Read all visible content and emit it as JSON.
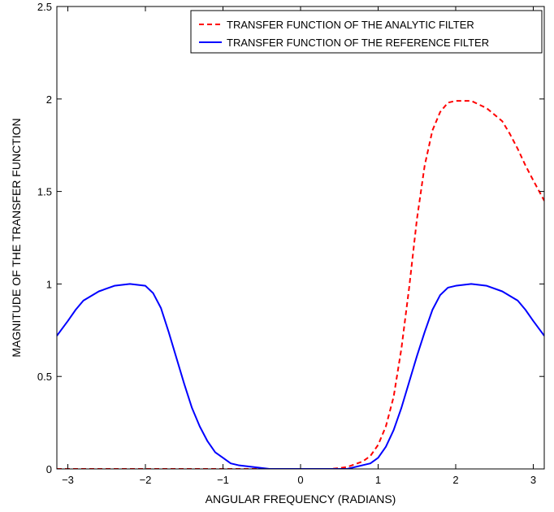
{
  "chart_data": {
    "type": "line",
    "title": "",
    "xlabel": "ANGULAR FREQUENCY (RADIANS)",
    "ylabel": "MAGNITUDE OF THE TRANSFER FUNCTION",
    "xlim": [
      -3.1416,
      3.1416
    ],
    "ylim": [
      0,
      2.5
    ],
    "x_ticks": [
      -3,
      -2,
      -1,
      0,
      1,
      2,
      3
    ],
    "x_tick_labels": [
      "−3",
      "−2",
      "−1",
      "0",
      "1",
      "2",
      "3"
    ],
    "y_ticks": [
      0,
      0.5,
      1,
      1.5,
      2,
      2.5
    ],
    "y_tick_labels": [
      "0",
      "0.5",
      "1",
      "1.5",
      "2",
      "2.5"
    ],
    "grid": false,
    "legend_position": "top-right",
    "series": [
      {
        "name": "TRANSFER FUNCTION OF THE ANALYTIC FILTER",
        "color": "#ff0000",
        "dash": "dashed",
        "x": [
          -3.1416,
          -3.0,
          -2.5,
          -2.0,
          -1.5,
          -1.0,
          -0.5,
          0.0,
          0.4,
          0.6,
          0.8,
          0.9,
          1.0,
          1.1,
          1.2,
          1.3,
          1.4,
          1.5,
          1.6,
          1.7,
          1.8,
          1.9,
          2.0,
          2.2,
          2.4,
          2.6,
          2.7,
          2.8,
          2.9,
          3.0,
          3.1416
        ],
        "y": [
          0,
          0,
          0,
          0,
          0,
          0,
          0,
          0,
          0,
          0.01,
          0.04,
          0.07,
          0.13,
          0.23,
          0.39,
          0.65,
          0.98,
          1.35,
          1.64,
          1.83,
          1.93,
          1.98,
          1.99,
          1.99,
          1.95,
          1.88,
          1.81,
          1.73,
          1.64,
          1.56,
          1.45
        ]
      },
      {
        "name": "TRANSFER FUNCTION OF THE REFERENCE FILTER",
        "color": "#0000ff",
        "dash": "solid",
        "x": [
          -3.1416,
          -3.0,
          -2.9,
          -2.8,
          -2.6,
          -2.4,
          -2.2,
          -2.0,
          -1.9,
          -1.8,
          -1.7,
          -1.6,
          -1.5,
          -1.4,
          -1.3,
          -1.2,
          -1.1,
          -1.0,
          -0.9,
          -0.8,
          -0.6,
          -0.4,
          -0.2,
          0.0,
          0.2,
          0.4,
          0.6,
          0.8,
          0.9,
          1.0,
          1.1,
          1.2,
          1.3,
          1.4,
          1.5,
          1.6,
          1.7,
          1.8,
          1.9,
          2.0,
          2.2,
          2.4,
          2.6,
          2.8,
          2.9,
          3.0,
          3.1416
        ],
        "y": [
          0.72,
          0.8,
          0.86,
          0.91,
          0.96,
          0.99,
          1.0,
          0.99,
          0.95,
          0.87,
          0.74,
          0.6,
          0.46,
          0.33,
          0.23,
          0.15,
          0.09,
          0.06,
          0.03,
          0.02,
          0.01,
          0.0,
          0.0,
          0.0,
          0.0,
          0.0,
          0.0,
          0.02,
          0.03,
          0.06,
          0.12,
          0.21,
          0.33,
          0.47,
          0.61,
          0.74,
          0.86,
          0.94,
          0.98,
          0.99,
          1.0,
          0.99,
          0.96,
          0.91,
          0.86,
          0.8,
          0.72
        ]
      }
    ]
  }
}
